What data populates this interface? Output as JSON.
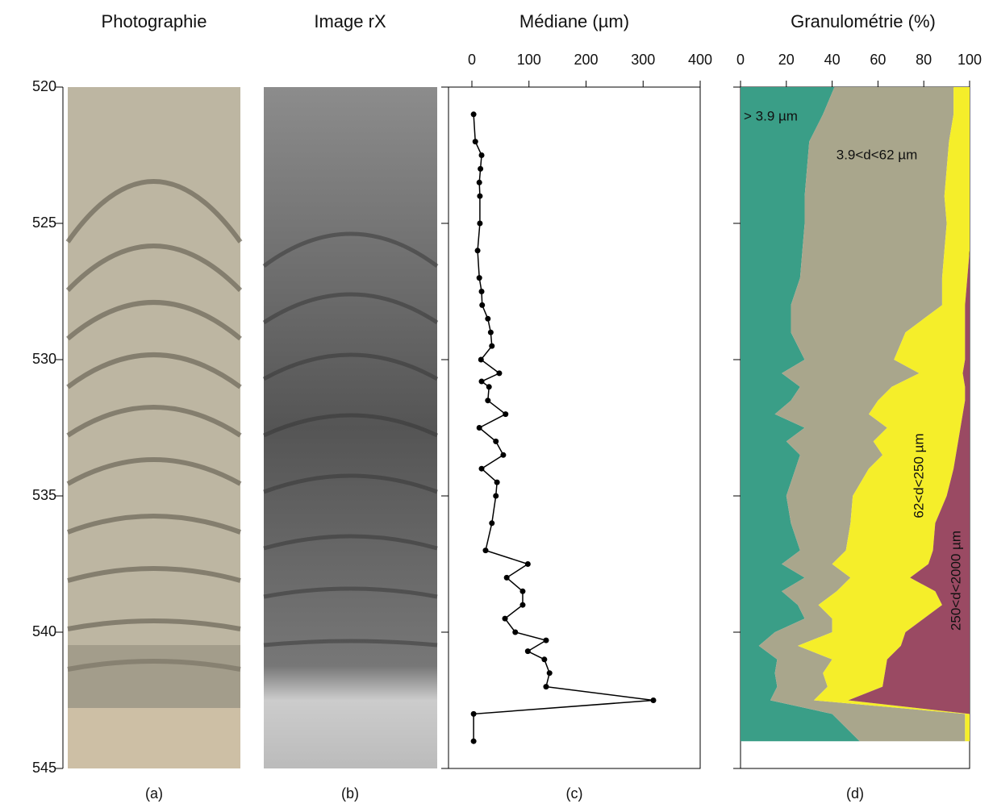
{
  "panels": [
    {
      "title": "Photographie",
      "label": "(a)"
    },
    {
      "title": "Image rX",
      "label": "(b)"
    }
  ],
  "depth_axis": {
    "ylim": [
      520,
      545
    ],
    "yticks": [
      520,
      525,
      530,
      535,
      540,
      545
    ]
  },
  "chart_data": [
    {
      "type": "line",
      "title": "Médiane (µm)",
      "label": "(c)",
      "xlim": [
        0,
        400
      ],
      "xticks": [
        0,
        100,
        200,
        300,
        400
      ],
      "color": "#000000",
      "depth": [
        521,
        522,
        522.5,
        523,
        523.5,
        524,
        525,
        526,
        527,
        527.5,
        528,
        528.5,
        529,
        529.5,
        530,
        530.5,
        530.8,
        531,
        531.5,
        532,
        532.5,
        533,
        533.5,
        534,
        534.5,
        535,
        536,
        537,
        537.5,
        538,
        538.5,
        539,
        539.5,
        540,
        540.3,
        540.7,
        541,
        541.5,
        542,
        542.5,
        543,
        544
      ],
      "values": [
        3,
        6,
        17,
        15,
        13,
        14,
        14,
        10,
        13,
        17,
        18,
        28,
        33,
        35,
        16,
        48,
        17,
        30,
        28,
        59,
        13,
        42,
        55,
        17,
        44,
        42,
        35,
        24,
        98,
        61,
        89,
        89,
        58,
        76,
        130,
        98,
        127,
        136,
        130,
        318,
        3,
        3
      ]
    },
    {
      "type": "area",
      "title": "Granulométrie (%)",
      "label": "(d)",
      "xlim": [
        0,
        100
      ],
      "xticks": [
        0,
        20,
        40,
        60,
        80,
        100
      ],
      "depth": [
        520,
        521,
        522,
        523,
        524,
        525,
        526,
        527,
        528,
        529,
        530,
        530.5,
        531,
        531.5,
        532,
        532.5,
        533,
        533.5,
        534,
        535,
        536,
        537,
        537.5,
        538,
        538.5,
        539,
        539.5,
        540,
        540.5,
        541,
        541.5,
        542,
        542.5,
        543,
        544
      ],
      "series": [
        {
          "name": "> 3.9 µm",
          "color": "#3a9e87",
          "values": [
            41,
            36,
            30,
            29,
            28,
            28,
            27,
            26,
            22,
            22,
            28,
            18,
            26,
            22,
            15,
            28,
            20,
            26,
            24,
            20,
            22,
            26,
            18,
            28,
            18,
            25,
            28,
            15,
            8,
            16,
            15,
            16,
            13,
            40,
            52
          ]
        },
        {
          "name": "3.9<d<62 µm",
          "color": "#a9a68c",
          "values": [
            52,
            57,
            61,
            61,
            61,
            62,
            62,
            62,
            66,
            50,
            39,
            60,
            40,
            38,
            41,
            36,
            38,
            36,
            32,
            29,
            26,
            20,
            22,
            20,
            24,
            9,
            12,
            25,
            17,
            24,
            21,
            22,
            19,
            58,
            46
          ]
        },
        {
          "name": "62<d<250 µm",
          "color": "#f5ee2a",
          "values": [
            7,
            7,
            9,
            10,
            11,
            10,
            11,
            11,
            10,
            26,
            31,
            19,
            32,
            38,
            41,
            32,
            37,
            32,
            37,
            41,
            37,
            38,
            42,
            26,
            43,
            54,
            40,
            32,
            45,
            24,
            27,
            24,
            15,
            2,
            2
          ]
        },
        {
          "name": "250<d<2000 µm",
          "color": "#9a4a63",
          "values": [
            0,
            0,
            0,
            0,
            0,
            0,
            0,
            1,
            2,
            2,
            2,
            3,
            2,
            2,
            3,
            4,
            5,
            6,
            7,
            10,
            15,
            16,
            18,
            26,
            15,
            12,
            20,
            28,
            30,
            36,
            37,
            38,
            53,
            0,
            0
          ]
        }
      ]
    }
  ]
}
